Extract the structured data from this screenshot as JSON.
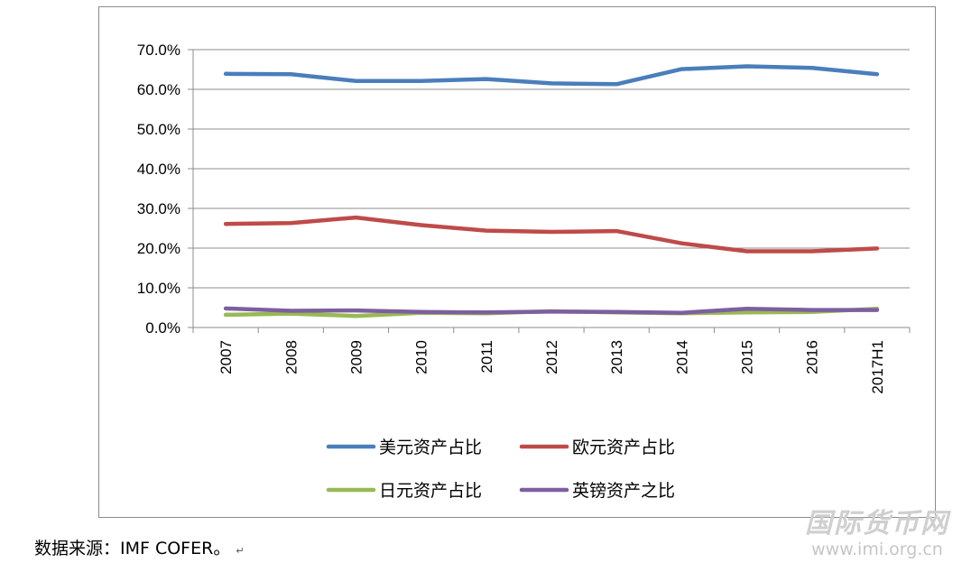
{
  "chart_data": {
    "type": "line",
    "title": "",
    "xlabel": "",
    "ylabel": "",
    "categories": [
      "2007",
      "2008",
      "2009",
      "2010",
      "2011",
      "2012",
      "2013",
      "2014",
      "2015",
      "2016",
      "2017H1"
    ],
    "y_ticks": [
      "0.0%",
      "10.0%",
      "20.0%",
      "30.0%",
      "40.0%",
      "50.0%",
      "60.0%",
      "70.0%"
    ],
    "ylim": [
      0,
      70
    ],
    "y_unit": "percent",
    "grid": "horizontal",
    "legend_position": "bottom",
    "series": [
      {
        "name": "美元资产占比",
        "color": "#4a7ebb",
        "values": [
          63.9,
          63.8,
          62.1,
          62.1,
          62.6,
          61.5,
          61.3,
          65.1,
          65.8,
          65.4,
          63.8
        ]
      },
      {
        "name": "欧元资产占比",
        "color": "#be4b48",
        "values": [
          26.1,
          26.3,
          27.7,
          25.8,
          24.4,
          24.1,
          24.3,
          21.2,
          19.2,
          19.2,
          19.9
        ]
      },
      {
        "name": "日元资产占比",
        "color": "#98b954",
        "values": [
          3.2,
          3.5,
          2.9,
          3.7,
          3.6,
          4.1,
          3.8,
          3.6,
          3.8,
          3.9,
          4.7
        ]
      },
      {
        "name": "英镑资产之比",
        "color": "#7d5fa0",
        "values": [
          4.8,
          4.2,
          4.3,
          3.9,
          3.8,
          4.0,
          3.9,
          3.7,
          4.7,
          4.4,
          4.4
        ]
      }
    ]
  },
  "source_note": "数据来源：IMF COFER。",
  "return_mark": "↵",
  "watermark": {
    "name": "国际货币网",
    "url": "www.imi.org.cn"
  }
}
